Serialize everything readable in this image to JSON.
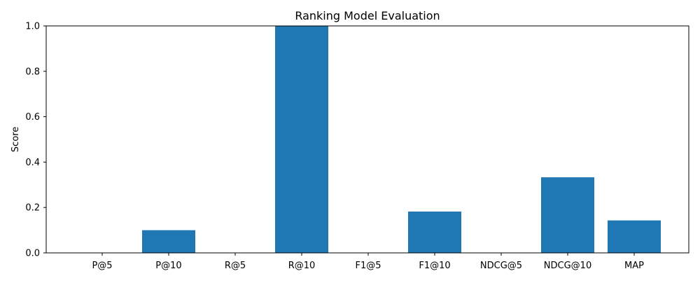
{
  "chart_data": {
    "type": "bar",
    "title": "Ranking Model Evaluation",
    "xlabel": "",
    "ylabel": "Score",
    "categories": [
      "P@5",
      "P@10",
      "R@5",
      "R@10",
      "F1@5",
      "F1@10",
      "NDCG@5",
      "NDCG@10",
      "MAP"
    ],
    "values": [
      0.0,
      0.1,
      0.0,
      1.0,
      0.0,
      0.182,
      0.0,
      0.333,
      0.143
    ],
    "ylim": [
      0,
      1.0
    ],
    "yticks": [
      "0.0",
      "0.2",
      "0.4",
      "0.6",
      "0.8",
      "1.0"
    ],
    "bar_color": "#1f77b4",
    "grid": false,
    "legend": "none"
  }
}
